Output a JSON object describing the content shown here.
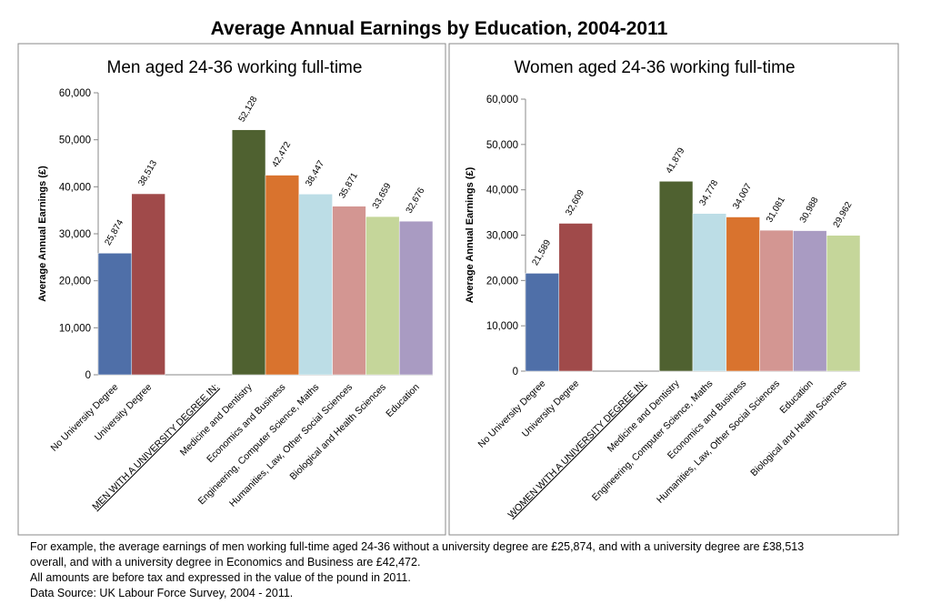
{
  "title": "Average Annual Earnings by Education, 2004-2011",
  "notes": [
    "For example, the average earnings of men working full-time aged 24-36 without a university degree are £25,874, and with a university degree are £38,513",
    "overall, and with a university degree in Economics and Business are £42,472.",
    "All amounts are before tax and expressed in the value of the pound in 2011.",
    "Data Source: UK Labour Force Survey, 2004 - 2011."
  ],
  "chart_data": [
    {
      "type": "bar",
      "title": "Men aged 24-36 working full-time",
      "y_label": "Average Annual Earnings (£)",
      "categories": [
        "No University Degree",
        "University Degree",
        null,
        "MEN WITH A UNIVERSITY DEGREE IN:",
        "Medicine and Dentistry",
        "Economics and Business",
        "Engineering, Computer Science, Maths",
        "Humanities, Law, Other Social Sciences",
        "Biological and Health Sciences",
        "Education"
      ],
      "values": [
        25874,
        38513,
        null,
        null,
        52128,
        42472,
        38447,
        35871,
        33659,
        32676
      ],
      "value_labels": [
        "25,874",
        "38,513",
        null,
        null,
        "52,128",
        "42,472",
        "38,447",
        "35,871",
        "33,659",
        "32,676"
      ],
      "colors": [
        "#4f6fa8",
        "#a04a4a",
        null,
        null,
        "#4f6130",
        "#d9732e",
        "#bcdde6",
        "#d39692",
        "#c5d69a",
        "#a99bc2"
      ],
      "ylim": [
        0,
        60000
      ],
      "yticks": [
        0,
        {
          "value": 10000,
          "label": "10,000"
        },
        {
          "value": 20000,
          "label": "20,000"
        },
        {
          "value": 30000,
          "label": "30,000"
        },
        {
          "value": 40000,
          "label": "40,000"
        },
        {
          "value": 50000,
          "label": "50,000"
        },
        {
          "value": 60000,
          "label": "60,000"
        }
      ],
      "grid": false
    },
    {
      "type": "bar",
      "title": "Women aged 24-36 working full-time",
      "y_label": "Average Annual Earnings (£)",
      "categories": [
        "No University Degree",
        "University Degree",
        null,
        "WOMEN WITH A UNIVERSITY DEGREE IN:",
        "Medicine and Dentistry",
        "Engineering, Computer Science, Maths",
        "Economics and Business",
        "Humanities, Law, Other Social Sciences",
        "Education",
        "Biological and Health Sciences"
      ],
      "values": [
        21589,
        32609,
        null,
        null,
        41879,
        34778,
        34007,
        31081,
        30988,
        29962
      ],
      "value_labels": [
        "21,589",
        "32,609",
        null,
        null,
        "41,879",
        "34,778",
        "34,007",
        "31,081",
        "30,988",
        "29,962"
      ],
      "colors": [
        "#4f6fa8",
        "#a04a4a",
        null,
        null,
        "#4f6130",
        "#bcdde6",
        "#d9732e",
        "#d39692",
        "#a99bc2",
        "#c5d69a"
      ],
      "ylim": [
        0,
        60000
      ],
      "yticks": [
        0,
        {
          "value": 10000,
          "label": "10,000"
        },
        {
          "value": 20000,
          "label": "20,000"
        },
        {
          "value": 30000,
          "label": "30,000"
        },
        {
          "value": 40000,
          "label": "40,000"
        },
        {
          "value": 50000,
          "label": "50,000"
        },
        {
          "value": 60000,
          "label": "60,000"
        }
      ],
      "grid": false
    }
  ]
}
